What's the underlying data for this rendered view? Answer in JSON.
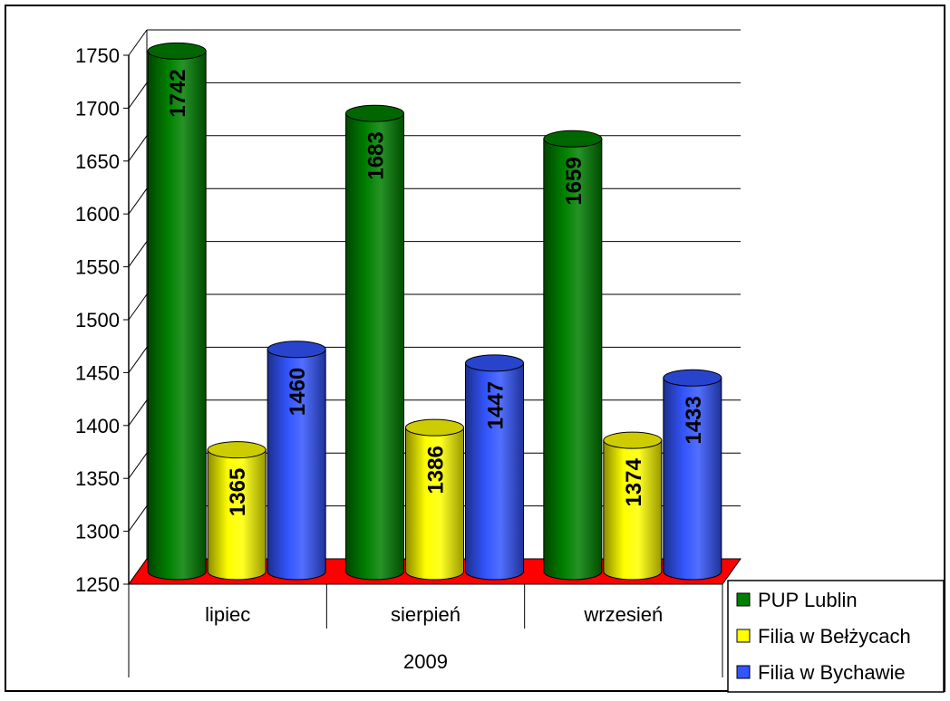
{
  "chart_data": {
    "type": "bar",
    "title": "",
    "xlabel": "",
    "ylabel": "",
    "group_label": "2009",
    "categories": [
      "lipiec",
      "sierpień",
      "wrzesień"
    ],
    "series": [
      {
        "name": "PUP Lublin",
        "values": [
          1742,
          1683,
          1659
        ],
        "color": "#008000"
      },
      {
        "name": "Filia w Bełżycach",
        "values": [
          1365,
          1386,
          1374
        ],
        "color": "#ffff00"
      },
      {
        "name": "Filia w Bychawie",
        "values": [
          1460,
          1447,
          1433
        ],
        "color": "#3355ff"
      }
    ],
    "ylim": [
      1250,
      1750
    ],
    "yticks": [
      1250,
      1300,
      1350,
      1400,
      1450,
      1500,
      1550,
      1600,
      1650,
      1700,
      1750
    ],
    "grid": true,
    "floor_color": "#ff0000",
    "legend_position": "right",
    "three_d": true
  }
}
